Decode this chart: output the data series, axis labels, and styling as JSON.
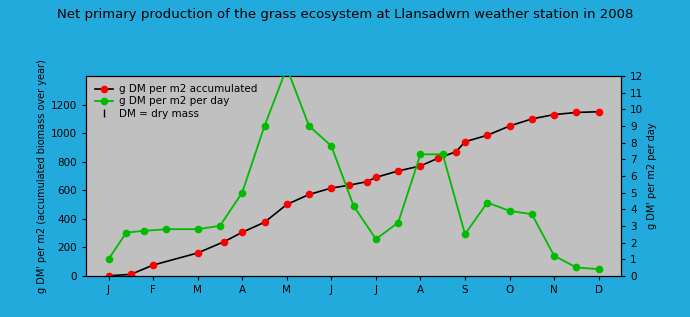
{
  "title": "Net primary production of the grass ecosystem at Llansadwrn weather station in 2008",
  "ylabel_left": "g DM' per m2 (accumulated biomass over year)",
  "ylabel_right": "g DM' per m2 per day",
  "background_color": "#c0c0c0",
  "outer_background": "#22aadd",
  "month_labels": [
    "J",
    "F",
    "M",
    "A",
    "M",
    "J",
    "J",
    "A",
    "S",
    "O",
    "N",
    "D"
  ],
  "red_x": [
    1.0,
    1.5,
    2.0,
    3.0,
    3.6,
    4.0,
    4.5,
    5.0,
    5.5,
    6.0,
    6.4,
    6.8,
    7.0,
    7.5,
    8.0,
    8.4,
    8.8,
    9.0,
    9.5,
    10.0,
    10.5,
    11.0,
    11.5,
    12.0
  ],
  "red_y": [
    0,
    10,
    75,
    160,
    240,
    305,
    375,
    500,
    570,
    615,
    635,
    660,
    690,
    735,
    770,
    825,
    870,
    940,
    985,
    1050,
    1100,
    1130,
    1145,
    1150
  ],
  "green_x": [
    1.0,
    1.4,
    1.8,
    2.3,
    3.0,
    3.5,
    4.0,
    4.5,
    5.0,
    5.5,
    6.0,
    6.5,
    7.0,
    7.5,
    8.0,
    8.5,
    9.0,
    9.5,
    10.0,
    10.5,
    11.0,
    11.5,
    12.0
  ],
  "green_y": [
    1.0,
    2.6,
    2.7,
    2.8,
    2.8,
    3.0,
    5.0,
    9.0,
    12.5,
    9.0,
    7.8,
    4.2,
    2.2,
    3.2,
    7.3,
    7.3,
    2.5,
    4.4,
    3.9,
    3.7,
    1.2,
    0.5,
    0.4
  ],
  "red_color": "#ff0000",
  "green_color": "#00bb00",
  "line_color": "#000000",
  "ylim_left": [
    0,
    1400
  ],
  "ylim_right": [
    0,
    12
  ],
  "yticks_left": [
    0,
    200,
    400,
    600,
    800,
    1000,
    1200
  ],
  "yticks_right": [
    0,
    1,
    2,
    3,
    4,
    5,
    6,
    7,
    8,
    9,
    10,
    11,
    12
  ],
  "legend_labels": [
    "g DM per m2 accumulated",
    "g DM per m2 per day",
    "DM = dry mass"
  ],
  "title_color": "#000000",
  "title_fontsize": 9.5,
  "axis_label_fontsize": 7.0,
  "tick_fontsize": 7.5,
  "legend_fontsize": 7.5
}
